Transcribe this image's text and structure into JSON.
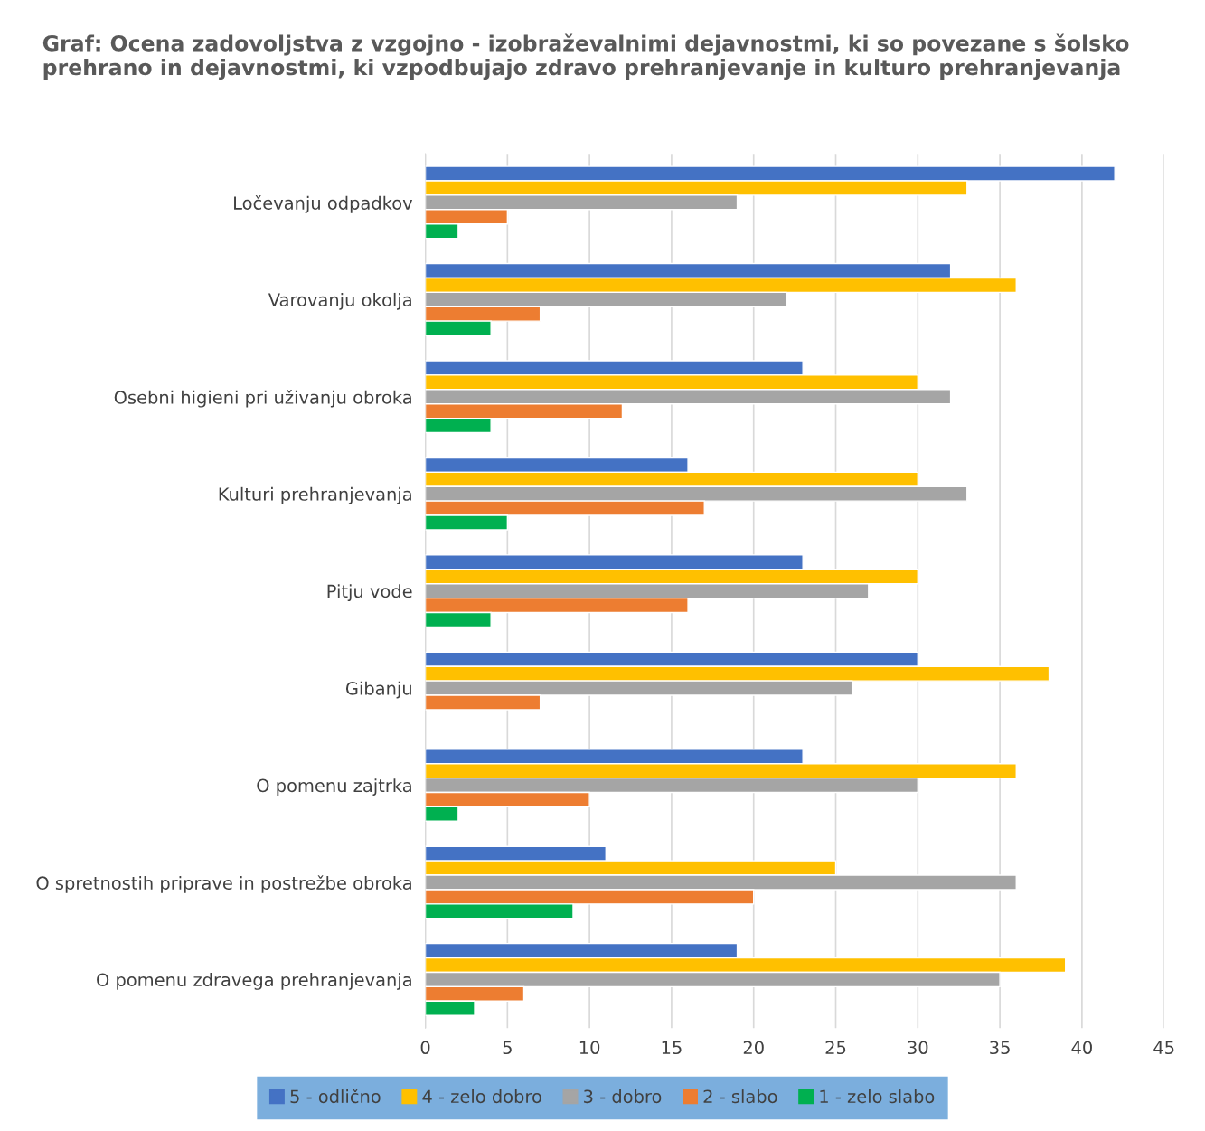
{
  "chart_data": {
    "type": "bar",
    "orientation": "horizontal",
    "title": "Graf: Ocena zadovoljstva z vzgojno - izobraževalnimi dejavnostmi, ki so povezane s šolsko prehrano in dejavnostmi, ki vzpodbujajo zdravo prehranjevanje in kulturo prehranjevanja",
    "categories": [
      "Ločevanju odpadkov",
      "Varovanju okolja",
      "Osebni higieni pri uživanju obroka",
      "Kulturi prehranjevanja",
      "Pitju vode",
      "Gibanju",
      "O pomenu zajtrka",
      "O spretnostih priprave in postrežbe obroka",
      "O pomenu zdravega prehranjevanja"
    ],
    "series": [
      {
        "name": "5 - odlično",
        "color": "#4472c4",
        "values": [
          42,
          32,
          23,
          16,
          23,
          30,
          23,
          11,
          19
        ]
      },
      {
        "name": "4 - zelo dobro",
        "color": "#ffc000",
        "values": [
          33,
          36,
          30,
          30,
          30,
          38,
          36,
          25,
          39
        ]
      },
      {
        "name": "3 - dobro",
        "color": "#a5a5a5",
        "values": [
          19,
          22,
          32,
          33,
          27,
          26,
          30,
          36,
          35
        ]
      },
      {
        "name": "2 - slabo",
        "color": "#ed7d31",
        "values": [
          5,
          7,
          12,
          17,
          16,
          7,
          10,
          20,
          6
        ]
      },
      {
        "name": "1 - zelo slabo",
        "color": "#00b050",
        "values": [
          2,
          4,
          4,
          5,
          4,
          null,
          2,
          9,
          3
        ]
      }
    ],
    "xlim": [
      0,
      45
    ],
    "xticks": [
      0,
      5,
      10,
      15,
      20,
      25,
      30,
      35,
      40,
      45
    ],
    "grid": "x",
    "legend": "bottom"
  }
}
